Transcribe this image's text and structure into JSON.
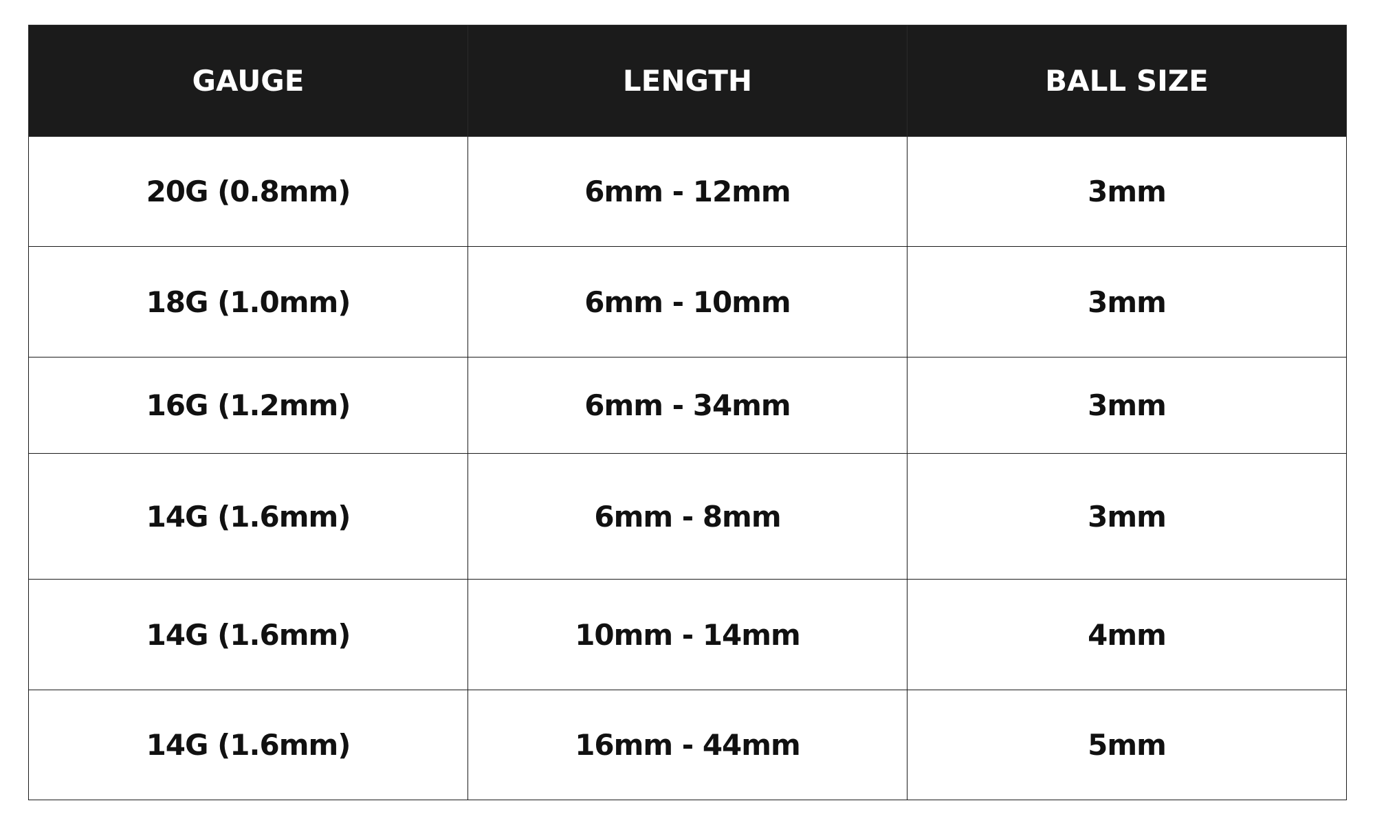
{
  "table": {
    "header_bg": "#1b1b1b",
    "columns": [
      "GAUGE",
      "LENGTH",
      "BALL SIZE"
    ],
    "rows": [
      [
        "20G (0.8mm)",
        "6mm - 12mm",
        "3mm"
      ],
      [
        "18G (1.0mm)",
        "6mm - 10mm",
        "3mm"
      ],
      [
        "16G (1.2mm)",
        "6mm - 34mm",
        "3mm"
      ],
      [
        "14G (1.6mm)",
        "6mm - 8mm",
        "3mm"
      ],
      [
        "14G (1.6mm)",
        "10mm - 14mm",
        "4mm"
      ],
      [
        "14G (1.6mm)",
        "16mm - 44mm",
        "5mm"
      ]
    ]
  }
}
